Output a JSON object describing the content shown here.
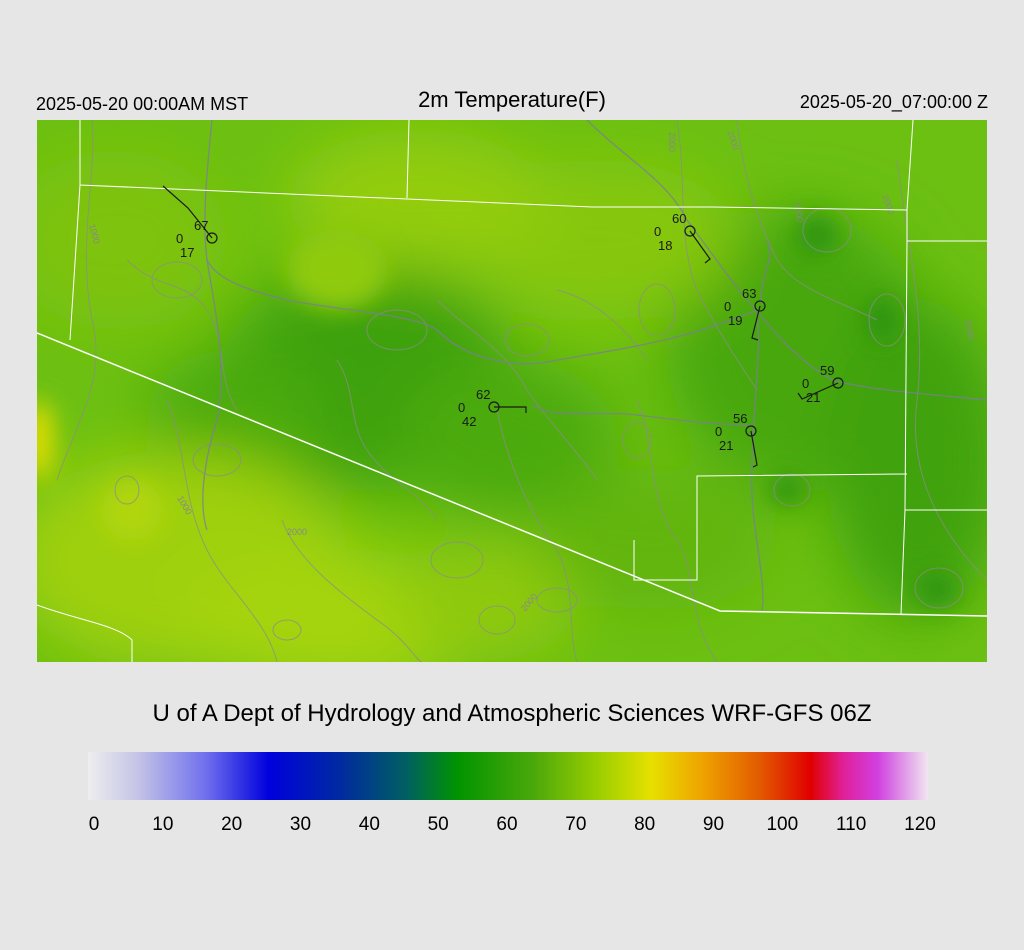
{
  "header": {
    "valid_local": "2025-05-20 00:00AM MST",
    "title": "2m Temperature(F)",
    "valid_utc": "2025-05-20_07:00:00 Z"
  },
  "credit": "U of A Dept of Hydrology and Atmospheric Sciences WRF-GFS 06Z",
  "colorbar": {
    "ticks": [
      "0",
      "10",
      "20",
      "30",
      "40",
      "50",
      "60",
      "70",
      "80",
      "90",
      "100",
      "110",
      "120"
    ]
  },
  "contour_labels": [
    "1000",
    "1000",
    "2000",
    "2000",
    "2000",
    "2000",
    "2000",
    "2000",
    "2000"
  ],
  "stations": [
    {
      "temp": "67",
      "cloud": "0",
      "dewpoint": "17"
    },
    {
      "temp": "60",
      "cloud": "0",
      "dewpoint": "18"
    },
    {
      "temp": "63",
      "cloud": "0",
      "dewpoint": "19"
    },
    {
      "temp": "59",
      "cloud": "0",
      "dewpoint": "21"
    },
    {
      "temp": "62",
      "cloud": "0",
      "dewpoint": "42"
    },
    {
      "temp": "56",
      "cloud": "0",
      "dewpoint": "21"
    }
  ]
}
